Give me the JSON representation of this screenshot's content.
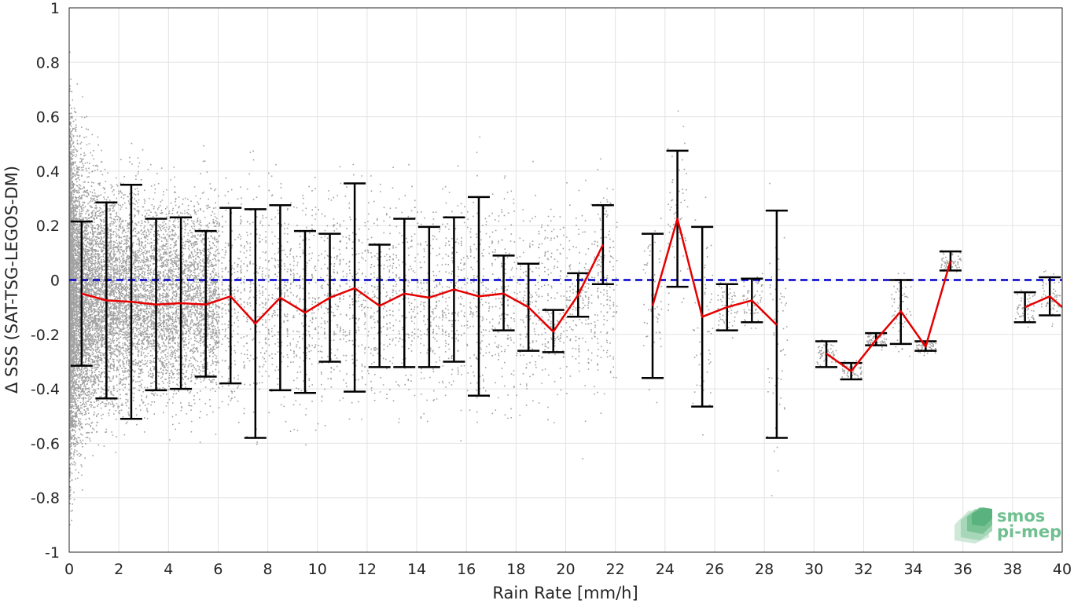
{
  "chart_data": {
    "type": "scatter",
    "xlabel": "Rain Rate [mm/h]",
    "ylabel": "Δ SSS (SAT-TSG-LEGOS-DM)",
    "xlim": [
      0,
      40
    ],
    "ylim": [
      -1,
      1
    ],
    "x_ticks": [
      0,
      2,
      4,
      6,
      8,
      10,
      12,
      14,
      16,
      18,
      20,
      22,
      24,
      26,
      28,
      30,
      32,
      34,
      36,
      38,
      40
    ],
    "y_ticks": [
      1,
      0.8,
      0.6,
      0.4,
      0.2,
      0,
      -0.2,
      -0.4,
      -0.6,
      -0.8,
      -1
    ],
    "y_tick_labels": [
      "1",
      "0.8",
      "0.6",
      "0.4",
      "0.2",
      "0",
      "-0.2",
      "-0.4",
      "-0.6",
      "-0.8",
      "-1"
    ],
    "grid": true,
    "zero_line": {
      "y": 0,
      "color": "#0000cc",
      "style": "dashed"
    },
    "colors": {
      "scatter": "#808080",
      "mean_line": "#e60000",
      "error_bars": "#000000",
      "zero_line": "#0000cc"
    },
    "bins": [
      {
        "x": 0.5,
        "mean": -0.05,
        "upper": 0.215,
        "lower": -0.315
      },
      {
        "x": 1.5,
        "mean": -0.075,
        "upper": 0.285,
        "lower": -0.435
      },
      {
        "x": 2.5,
        "mean": -0.08,
        "upper": 0.35,
        "lower": -0.51
      },
      {
        "x": 3.5,
        "mean": -0.09,
        "upper": 0.225,
        "lower": -0.405
      },
      {
        "x": 4.5,
        "mean": -0.085,
        "upper": 0.23,
        "lower": -0.4
      },
      {
        "x": 5.5,
        "mean": -0.09,
        "upper": 0.18,
        "lower": -0.355
      },
      {
        "x": 6.5,
        "mean": -0.06,
        "upper": 0.265,
        "lower": -0.38
      },
      {
        "x": 7.5,
        "mean": -0.16,
        "upper": 0.26,
        "lower": -0.58
      },
      {
        "x": 8.5,
        "mean": -0.065,
        "upper": 0.275,
        "lower": -0.405
      },
      {
        "x": 9.5,
        "mean": -0.12,
        "upper": 0.18,
        "lower": -0.415
      },
      {
        "x": 10.5,
        "mean": -0.065,
        "upper": 0.17,
        "lower": -0.3
      },
      {
        "x": 11.5,
        "mean": -0.03,
        "upper": 0.355,
        "lower": -0.41
      },
      {
        "x": 12.5,
        "mean": -0.095,
        "upper": 0.13,
        "lower": -0.32
      },
      {
        "x": 13.5,
        "mean": -0.05,
        "upper": 0.225,
        "lower": -0.32
      },
      {
        "x": 14.5,
        "mean": -0.065,
        "upper": 0.195,
        "lower": -0.32
      },
      {
        "x": 15.5,
        "mean": -0.035,
        "upper": 0.23,
        "lower": -0.3
      },
      {
        "x": 16.5,
        "mean": -0.06,
        "upper": 0.305,
        "lower": -0.425
      },
      {
        "x": 17.5,
        "mean": -0.05,
        "upper": 0.09,
        "lower": -0.185
      },
      {
        "x": 18.5,
        "mean": -0.1,
        "upper": 0.06,
        "lower": -0.26
      },
      {
        "x": 19.5,
        "mean": -0.19,
        "upper": -0.11,
        "lower": -0.265
      },
      {
        "x": 20.5,
        "mean": -0.055,
        "upper": 0.025,
        "lower": -0.135
      },
      {
        "x": 21.5,
        "mean": 0.13,
        "upper": 0.275,
        "lower": -0.015
      },
      {
        "x": 23.5,
        "mean": -0.095,
        "upper": 0.17,
        "lower": -0.36
      },
      {
        "x": 24.5,
        "mean": 0.225,
        "upper": 0.475,
        "lower": -0.025
      },
      {
        "x": 25.5,
        "mean": -0.135,
        "upper": 0.195,
        "lower": -0.465
      },
      {
        "x": 26.5,
        "mean": -0.1,
        "upper": -0.015,
        "lower": -0.185
      },
      {
        "x": 27.5,
        "mean": -0.075,
        "upper": 0.005,
        "lower": -0.155
      },
      {
        "x": 28.5,
        "mean": -0.165,
        "upper": 0.255,
        "lower": -0.58
      },
      {
        "x": 30.5,
        "mean": -0.27,
        "upper": -0.225,
        "lower": -0.32
      },
      {
        "x": 31.5,
        "mean": -0.335,
        "upper": -0.305,
        "lower": -0.365
      },
      {
        "x": 32.5,
        "mean": -0.22,
        "upper": -0.195,
        "lower": -0.24
      },
      {
        "x": 33.5,
        "mean": -0.115,
        "upper": 0.0,
        "lower": -0.235
      },
      {
        "x": 34.5,
        "mean": -0.245,
        "upper": -0.225,
        "lower": -0.26
      },
      {
        "x": 35.5,
        "mean": 0.07,
        "upper": 0.105,
        "lower": 0.035
      },
      {
        "x": 38.5,
        "mean": -0.1,
        "upper": -0.045,
        "lower": -0.155
      },
      {
        "x": 39.5,
        "mean": -0.06,
        "upper": 0.01,
        "lower": -0.13
      },
      {
        "x": 40.0,
        "mean": -0.1,
        "upper": null,
        "lower": null
      }
    ],
    "mean_line_segments": [
      [
        0.5,
        1.5,
        2.5,
        3.5,
        4.5,
        5.5,
        6.5,
        7.5,
        8.5,
        9.5,
        10.5,
        11.5,
        12.5,
        13.5,
        14.5,
        15.5,
        16.5,
        17.5,
        18.5,
        19.5,
        20.5,
        21.5
      ],
      [
        23.5,
        24.5,
        25.5,
        26.5,
        27.5,
        28.5
      ],
      [
        30.5,
        31.5,
        32.5,
        33.5,
        34.5,
        35.5
      ],
      [
        38.5,
        39.5,
        40.0
      ]
    ]
  },
  "logo": {
    "line1": "smos",
    "line2": "pi-mep"
  }
}
